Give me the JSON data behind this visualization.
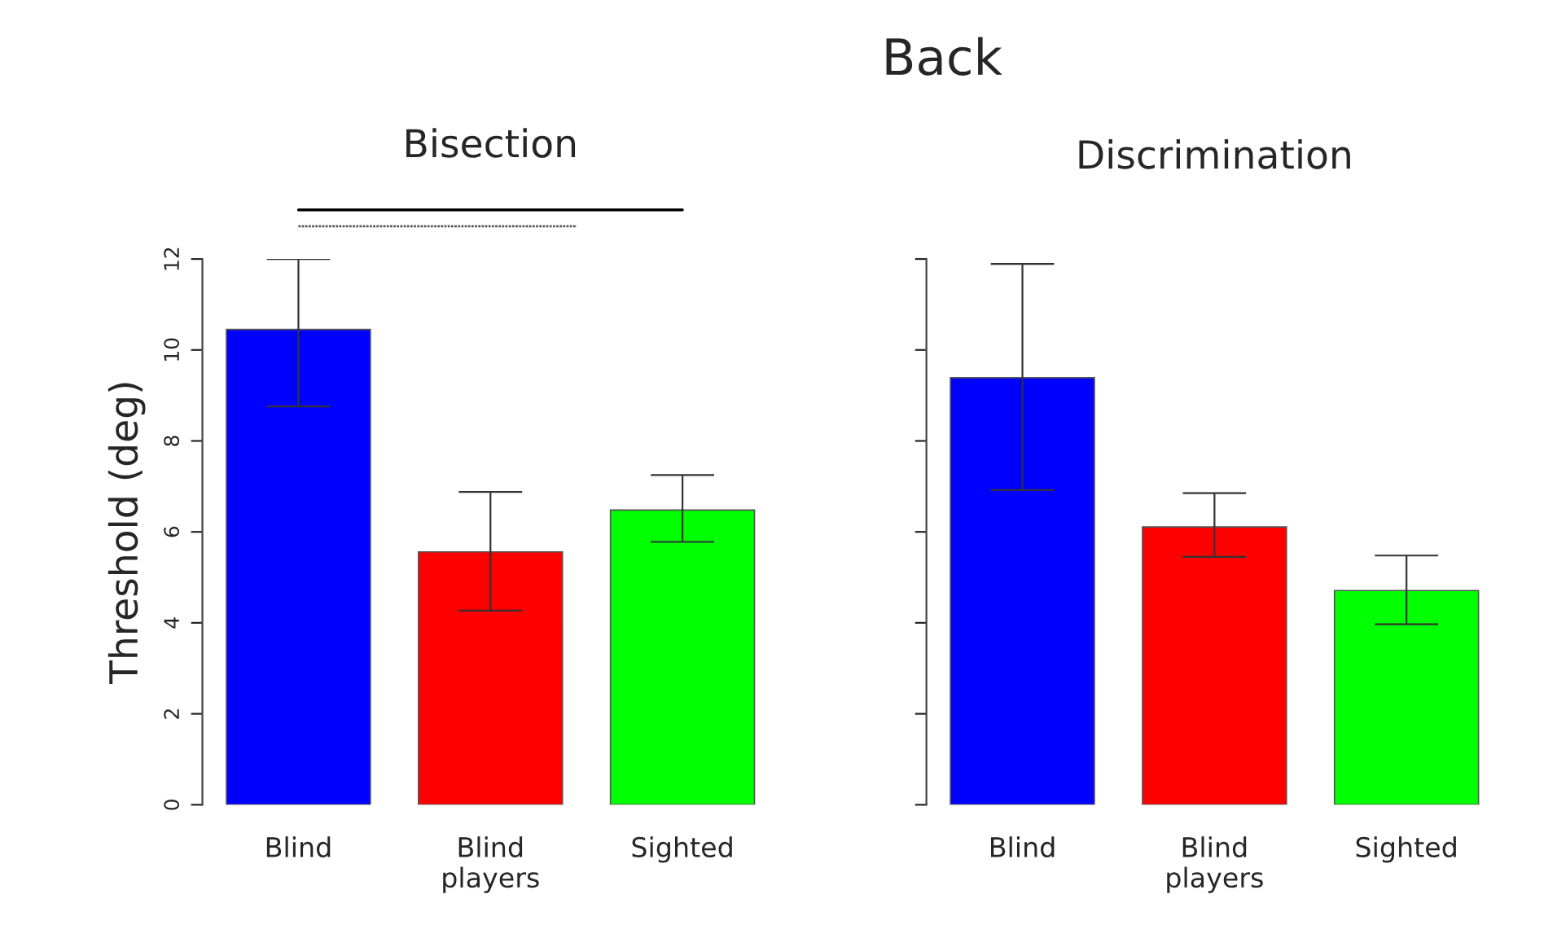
{
  "chart_data": [
    {
      "type": "bar",
      "title": "Bisection",
      "ylabel": "Threshold (deg)",
      "annotations": [
        "Back"
      ],
      "categories": [
        "Blind",
        "Blind\nplayers",
        "Sighted"
      ],
      "values": [
        10.45,
        5.56,
        6.48
      ],
      "colors": [
        "#0000ff",
        "#ff0000",
        "#00ff00"
      ],
      "errors": [
        [
          8.76,
          12.0
        ],
        [
          4.27,
          6.88
        ],
        [
          5.78,
          7.25
        ]
      ],
      "ylim": [
        0,
        12
      ],
      "yticks": [
        0,
        2,
        4,
        6,
        8,
        10,
        12
      ],
      "grid": false,
      "legend": false
    },
    {
      "type": "bar",
      "title": "Discrimination",
      "categories": [
        "Blind",
        "Blind\nplayers",
        "Sighted"
      ],
      "values": [
        9.39,
        6.11,
        4.71
      ],
      "colors": [
        "#0000ff",
        "#ff0000",
        "#00ff00"
      ],
      "errors": [
        [
          6.92,
          11.89
        ],
        [
          5.45,
          6.85
        ],
        [
          3.97,
          5.48
        ]
      ],
      "ylim": [
        0,
        12
      ],
      "yticks": [
        0,
        2,
        4,
        6,
        8,
        10,
        12
      ],
      "tick_labels": "x",
      "grid": false,
      "legend": false
    }
  ]
}
